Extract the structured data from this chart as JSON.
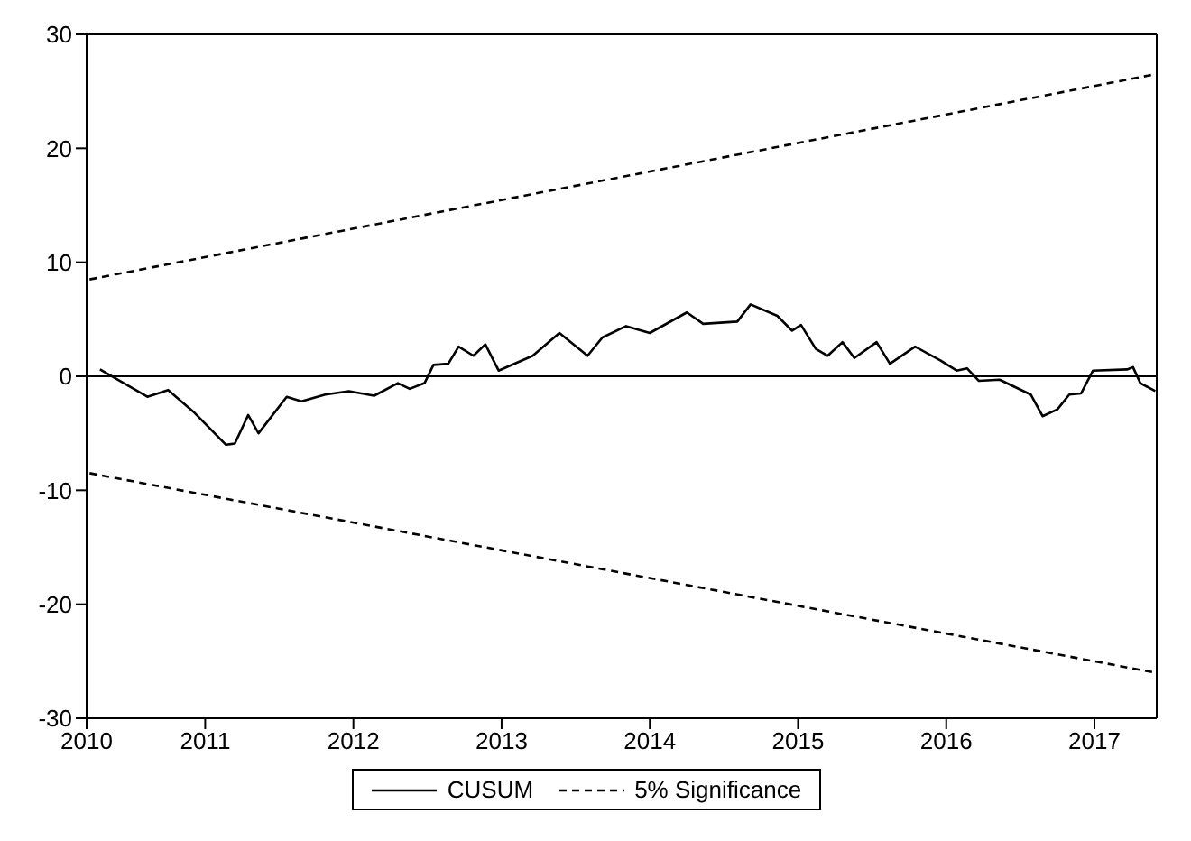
{
  "chart_data": {
    "type": "line",
    "xlim": [
      2010.2,
      2017.42
    ],
    "xticks": [
      {
        "value": 2010.2,
        "label": "2010"
      },
      2011,
      2012,
      2013,
      2014,
      2015,
      2016,
      2017
    ],
    "ylim": [
      -30,
      30
    ],
    "yticks": [
      -30,
      -20,
      -10,
      0,
      10,
      20,
      30
    ],
    "grid": false,
    "legend": "bottom",
    "marker": "none",
    "ref_lines": [
      {
        "axis": "y",
        "value": 0,
        "color": "#000000"
      }
    ],
    "series": [
      {
        "name": "CUSUM",
        "color": "#000000",
        "line_style": "solid",
        "x": [
          2010.29,
          2010.61,
          2010.75,
          2010.92,
          2011.14,
          2011.2,
          2011.29,
          2011.36,
          2011.55,
          2011.65,
          2011.81,
          2011.97,
          2012.14,
          2012.3,
          2012.38,
          2012.48,
          2012.54,
          2012.64,
          2012.71,
          2012.81,
          2012.89,
          2012.98,
          2013.21,
          2013.39,
          2013.58,
          2013.68,
          2013.84,
          2014.0,
          2014.25,
          2014.36,
          2014.59,
          2014.68,
          2014.86,
          2014.96,
          2015.02,
          2015.12,
          2015.2,
          2015.3,
          2015.38,
          2015.53,
          2015.62,
          2015.79,
          2015.96,
          2016.07,
          2016.14,
          2016.22,
          2016.36,
          2016.57,
          2016.65,
          2016.75,
          2016.83,
          2016.91,
          2016.99,
          2017.22,
          2017.26,
          2017.31,
          2017.41
        ],
        "values": [
          0.6,
          -1.8,
          -1.2,
          -3.1,
          -6.0,
          -5.9,
          -3.4,
          -5.0,
          -1.8,
          -2.2,
          -1.6,
          -1.3,
          -1.7,
          -0.6,
          -1.1,
          -0.6,
          1.0,
          1.1,
          2.6,
          1.8,
          2.8,
          0.5,
          1.8,
          3.8,
          1.8,
          3.4,
          4.4,
          3.8,
          5.6,
          4.6,
          4.8,
          6.3,
          5.3,
          4.0,
          4.5,
          2.4,
          1.8,
          3.0,
          1.6,
          3.0,
          1.1,
          2.6,
          1.4,
          0.5,
          0.7,
          -0.4,
          -0.3,
          -1.6,
          -3.5,
          -2.9,
          -1.6,
          -1.5,
          0.5,
          0.6,
          0.8,
          -0.6,
          -1.3
        ]
      },
      {
        "name": "5% Significance",
        "color": "#000000",
        "line_style": "dashed",
        "x": [
          2010.22,
          2017.41
        ],
        "values": [
          8.5,
          26.5
        ]
      },
      {
        "color": "#000000",
        "line_style": "dashed",
        "x": [
          2010.22,
          2017.41
        ],
        "values": [
          -8.5,
          -26
        ]
      }
    ]
  }
}
